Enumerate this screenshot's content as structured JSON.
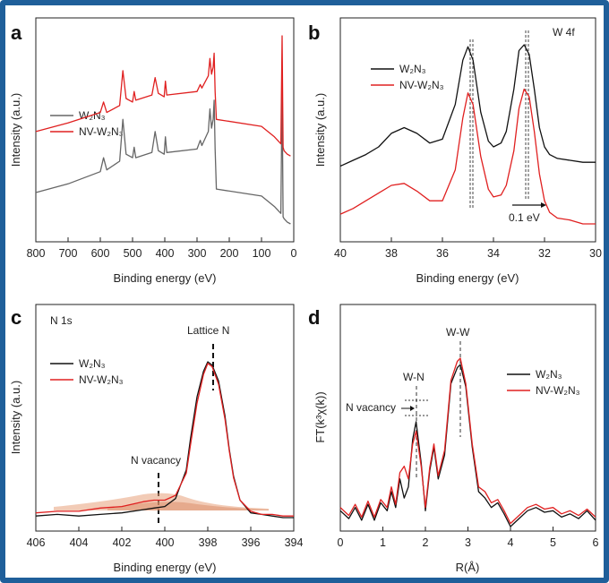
{
  "chart_data": [
    {
      "panel": "a",
      "type": "line",
      "title": "",
      "xlabel": "Binding energy (eV)",
      "ylabel": "Intensity (a.u.)",
      "xlim": [
        800,
        0
      ],
      "x_ticks": [
        "800",
        "700",
        "600",
        "500",
        "400",
        "300",
        "200",
        "100",
        "0"
      ],
      "legend": "left",
      "series": [
        {
          "name": "W2N3",
          "color": "#666666",
          "x": [
            800,
            700,
            600,
            590,
            580,
            540,
            530,
            520,
            500,
            495,
            490,
            440,
            430,
            420,
            402,
            398,
            394,
            300,
            290,
            285,
            265,
            260,
            255,
            250,
            247,
            244,
            240,
            100,
            60,
            40,
            36,
            33,
            30,
            20,
            10
          ],
          "y": [
            0.2,
            0.25,
            0.32,
            0.4,
            0.33,
            0.38,
            0.62,
            0.42,
            0.4,
            0.46,
            0.4,
            0.43,
            0.55,
            0.44,
            0.42,
            0.52,
            0.43,
            0.45,
            0.5,
            0.47,
            0.55,
            0.68,
            0.57,
            0.62,
            0.73,
            0.45,
            0.22,
            0.18,
            0.12,
            0.08,
            0.8,
            0.06,
            0.05,
            0.03,
            0.02
          ]
        },
        {
          "name": "NV-W2N3",
          "color": "#e02020",
          "x": [
            800,
            700,
            600,
            590,
            580,
            540,
            530,
            520,
            500,
            495,
            490,
            440,
            430,
            420,
            402,
            398,
            394,
            300,
            290,
            285,
            265,
            260,
            255,
            250,
            247,
            244,
            240,
            100,
            60,
            40,
            36,
            33,
            30,
            20,
            10
          ],
          "y": [
            0.55,
            0.6,
            0.66,
            0.72,
            0.66,
            0.7,
            0.9,
            0.74,
            0.72,
            0.78,
            0.73,
            0.76,
            0.86,
            0.77,
            0.75,
            0.84,
            0.76,
            0.78,
            0.82,
            0.8,
            0.87,
            0.97,
            0.88,
            0.92,
            1.0,
            0.78,
            0.62,
            0.58,
            0.52,
            0.48,
            1.1,
            0.46,
            0.44,
            0.42,
            0.41
          ]
        }
      ]
    },
    {
      "panel": "b",
      "type": "line",
      "title": "W 4f",
      "xlabel": "Binding energy (eV)",
      "ylabel": "Intensity (a.u.)",
      "xlim": [
        40,
        30
      ],
      "x_ticks": [
        "40",
        "38",
        "36",
        "34",
        "32",
        "30"
      ],
      "annotation": "0.1 eV",
      "legend": "top-left",
      "series": [
        {
          "name": "W2N3",
          "color": "#111111",
          "x": [
            40,
            39.5,
            39,
            38.5,
            38,
            37.5,
            37,
            36.5,
            36,
            35.5,
            35.2,
            35,
            34.8,
            34.5,
            34.2,
            34,
            33.7,
            33.5,
            33.2,
            33,
            32.8,
            32.6,
            32.4,
            32.2,
            32,
            31.8,
            31.5,
            31,
            30.5,
            30
          ],
          "y": [
            0.3,
            0.33,
            0.36,
            0.4,
            0.47,
            0.5,
            0.47,
            0.42,
            0.44,
            0.62,
            0.85,
            0.92,
            0.85,
            0.58,
            0.43,
            0.4,
            0.42,
            0.48,
            0.7,
            0.9,
            0.93,
            0.88,
            0.7,
            0.5,
            0.4,
            0.36,
            0.34,
            0.33,
            0.32,
            0.32
          ]
        },
        {
          "name": "NV-W2N3",
          "color": "#e02020",
          "x": [
            40,
            39.5,
            39,
            38.5,
            38,
            37.5,
            37,
            36.5,
            36,
            35.5,
            35.2,
            35,
            34.8,
            34.5,
            34.2,
            34,
            33.7,
            33.5,
            33.2,
            33,
            32.8,
            32.6,
            32.4,
            32.2,
            32,
            31.8,
            31.5,
            31,
            30.5,
            30
          ],
          "y": [
            0.05,
            0.08,
            0.12,
            0.16,
            0.2,
            0.21,
            0.17,
            0.12,
            0.12,
            0.28,
            0.55,
            0.68,
            0.62,
            0.35,
            0.18,
            0.14,
            0.15,
            0.2,
            0.38,
            0.6,
            0.7,
            0.66,
            0.48,
            0.26,
            0.12,
            0.06,
            0.03,
            0.02,
            0.0,
            0.0
          ]
        }
      ]
    },
    {
      "panel": "c",
      "type": "line",
      "title": "N 1s",
      "xlabel": "Binding energy (eV)",
      "ylabel": "Intensity (a.u.)",
      "xlim": [
        406,
        394
      ],
      "x_ticks": [
        "406",
        "404",
        "402",
        "400",
        "398",
        "396",
        "394"
      ],
      "annotations": [
        "Lattice N",
        "N vacancy"
      ],
      "legend": "left",
      "series": [
        {
          "name": "W2N3",
          "color": "#111111",
          "x": [
            406,
            405,
            404,
            403,
            402,
            401,
            400.5,
            400,
            399.5,
            399,
            398.8,
            398.5,
            398.2,
            398,
            397.8,
            397.5,
            397.2,
            397,
            396.8,
            396.5,
            396,
            395.5,
            395,
            394.5,
            394
          ],
          "y": [
            0.03,
            0.04,
            0.03,
            0.04,
            0.05,
            0.07,
            0.08,
            0.09,
            0.14,
            0.32,
            0.52,
            0.78,
            0.94,
            1.0,
            0.98,
            0.88,
            0.66,
            0.45,
            0.28,
            0.13,
            0.05,
            0.04,
            0.03,
            0.02,
            0.02
          ]
        },
        {
          "name": "NV-W2N3",
          "color": "#e02020",
          "x": [
            406,
            405,
            404,
            403,
            402,
            401,
            400.5,
            400,
            399.5,
            399,
            398.8,
            398.5,
            398.2,
            398,
            397.8,
            397.5,
            397.2,
            397,
            396.8,
            396.5,
            396,
            395.5,
            395,
            394.5,
            394
          ],
          "y": [
            0.05,
            0.06,
            0.06,
            0.08,
            0.09,
            0.12,
            0.13,
            0.13,
            0.16,
            0.3,
            0.48,
            0.74,
            0.92,
            0.99,
            0.97,
            0.86,
            0.64,
            0.44,
            0.27,
            0.13,
            0.06,
            0.04,
            0.04,
            0.03,
            0.03
          ]
        }
      ]
    },
    {
      "panel": "d",
      "type": "line",
      "title": "",
      "xlabel": "R(Å)",
      "ylabel": "FT(k³χ(k))",
      "xlim": [
        0,
        6
      ],
      "x_ticks": [
        "0",
        "1",
        "2",
        "3",
        "4",
        "5",
        "6"
      ],
      "annotations": [
        "W-W",
        "W-N",
        "N vacancy"
      ],
      "legend": "right",
      "series": [
        {
          "name": "W2N3",
          "color": "#111111",
          "x": [
            0,
            0.2,
            0.35,
            0.5,
            0.65,
            0.8,
            0.95,
            1.1,
            1.2,
            1.3,
            1.4,
            1.5,
            1.6,
            1.7,
            1.78,
            1.9,
            2.0,
            2.1,
            2.2,
            2.3,
            2.45,
            2.6,
            2.75,
            2.82,
            2.95,
            3.1,
            3.25,
            3.4,
            3.55,
            3.7,
            3.85,
            4.0,
            4.2,
            4.4,
            4.6,
            4.8,
            5.0,
            5.2,
            5.4,
            5.6,
            5.8,
            6.0
          ],
          "y": [
            0.1,
            0.05,
            0.12,
            0.04,
            0.14,
            0.04,
            0.15,
            0.1,
            0.22,
            0.12,
            0.3,
            0.18,
            0.25,
            0.55,
            0.66,
            0.4,
            0.1,
            0.35,
            0.5,
            0.3,
            0.45,
            0.9,
            1.0,
            1.02,
            0.88,
            0.5,
            0.22,
            0.18,
            0.12,
            0.15,
            0.08,
            0.0,
            0.05,
            0.1,
            0.12,
            0.09,
            0.1,
            0.06,
            0.08,
            0.05,
            0.1,
            0.04
          ]
        },
        {
          "name": "NV-W2N3",
          "color": "#e02020",
          "x": [
            0,
            0.2,
            0.35,
            0.5,
            0.65,
            0.8,
            0.95,
            1.1,
            1.2,
            1.3,
            1.4,
            1.5,
            1.6,
            1.7,
            1.78,
            1.9,
            2.0,
            2.1,
            2.2,
            2.3,
            2.45,
            2.6,
            2.75,
            2.82,
            2.95,
            3.1,
            3.25,
            3.4,
            3.55,
            3.7,
            3.85,
            4.0,
            4.2,
            4.4,
            4.6,
            4.8,
            5.0,
            5.2,
            5.4,
            5.6,
            5.8,
            6.0
          ],
          "y": [
            0.12,
            0.07,
            0.14,
            0.06,
            0.16,
            0.06,
            0.17,
            0.12,
            0.25,
            0.14,
            0.34,
            0.38,
            0.3,
            0.52,
            0.6,
            0.38,
            0.12,
            0.37,
            0.52,
            0.32,
            0.48,
            0.92,
            1.04,
            1.06,
            0.9,
            0.52,
            0.25,
            0.22,
            0.15,
            0.17,
            0.1,
            0.02,
            0.07,
            0.12,
            0.14,
            0.11,
            0.12,
            0.08,
            0.1,
            0.07,
            0.11,
            0.06
          ]
        }
      ]
    }
  ],
  "panel_labels": [
    "a",
    "b",
    "c",
    "d"
  ],
  "legend_names": {
    "w2n3": "W₂N₃",
    "nv": "NV-W₂N₃"
  },
  "colors": {
    "frame": "#1f5f9a",
    "w2n3_a": "#666666",
    "w2n3": "#111111",
    "nv": "#e02020",
    "fill": "#e8a07a"
  }
}
